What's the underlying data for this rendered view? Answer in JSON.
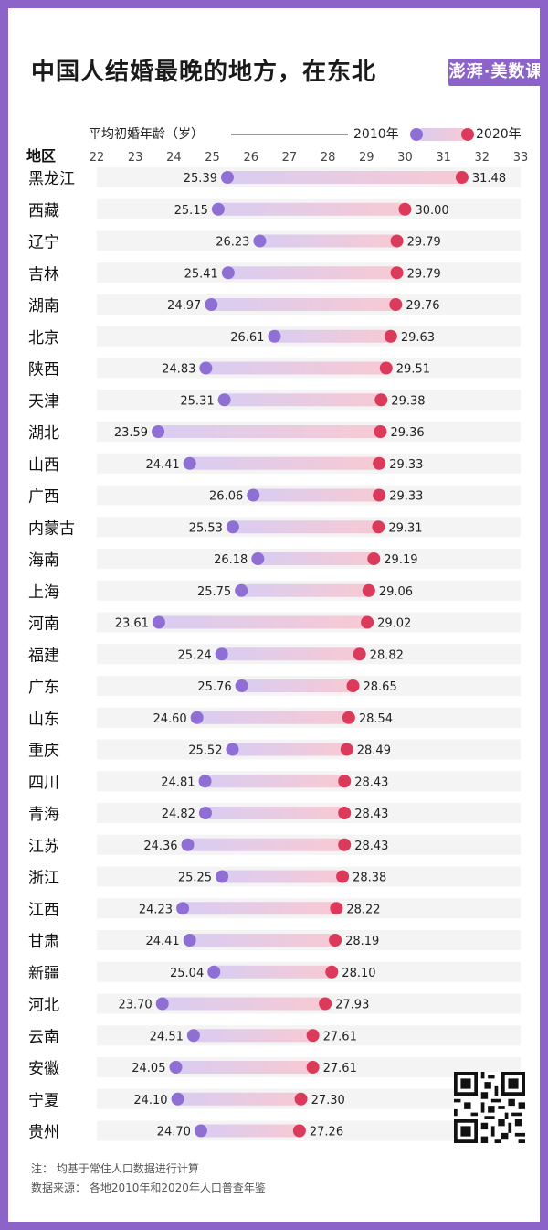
{
  "title": "中国人结婚最晚的地方，在东北",
  "logo_text": "澎湃·美数课",
  "colors": {
    "accent": "#8b63c9",
    "dot2010": "#8f6fd4",
    "dot2020": "#dc3a5a"
  },
  "notes": [
    "注：  均基于常住人口数据进行计算",
    "数据来源：  各地2010年和2020年人口普查年鉴"
  ],
  "chart_data": {
    "type": "dumbbell",
    "title": "中国人结婚最晚的地方，在东北",
    "measure_label": "平均初婚年龄（岁）",
    "category_header": "地区",
    "xlim": [
      22,
      33
    ],
    "ticks": [
      22,
      23,
      24,
      25,
      26,
      27,
      28,
      29,
      30,
      31,
      32,
      33
    ],
    "legend": {
      "position": "top-right"
    },
    "series": [
      {
        "name": "2010年",
        "values": [
          25.39,
          25.15,
          26.23,
          25.41,
          24.97,
          26.61,
          24.83,
          25.31,
          23.59,
          24.41,
          26.06,
          25.53,
          26.18,
          25.75,
          23.61,
          25.24,
          25.76,
          24.6,
          25.52,
          24.81,
          24.82,
          24.36,
          25.25,
          24.23,
          24.41,
          25.04,
          23.7,
          24.51,
          24.05,
          24.1,
          24.7
        ]
      },
      {
        "name": "2020年",
        "values": [
          31.48,
          30.0,
          29.79,
          29.79,
          29.76,
          29.63,
          29.51,
          29.38,
          29.36,
          29.33,
          29.33,
          29.31,
          29.19,
          29.06,
          29.02,
          28.82,
          28.65,
          28.54,
          28.49,
          28.43,
          28.43,
          28.43,
          28.38,
          28.22,
          28.19,
          28.1,
          27.93,
          27.61,
          27.61,
          27.3,
          27.26
        ]
      }
    ],
    "categories": [
      "黑龙江",
      "西藏",
      "辽宁",
      "吉林",
      "湖南",
      "北京",
      "陕西",
      "天津",
      "湖北",
      "山西",
      "广西",
      "内蒙古",
      "海南",
      "上海",
      "河南",
      "福建",
      "广东",
      "山东",
      "重庆",
      "四川",
      "青海",
      "江苏",
      "浙江",
      "江西",
      "甘肃",
      "新疆",
      "河北",
      "云南",
      "安徽",
      "宁夏",
      "贵州"
    ]
  }
}
